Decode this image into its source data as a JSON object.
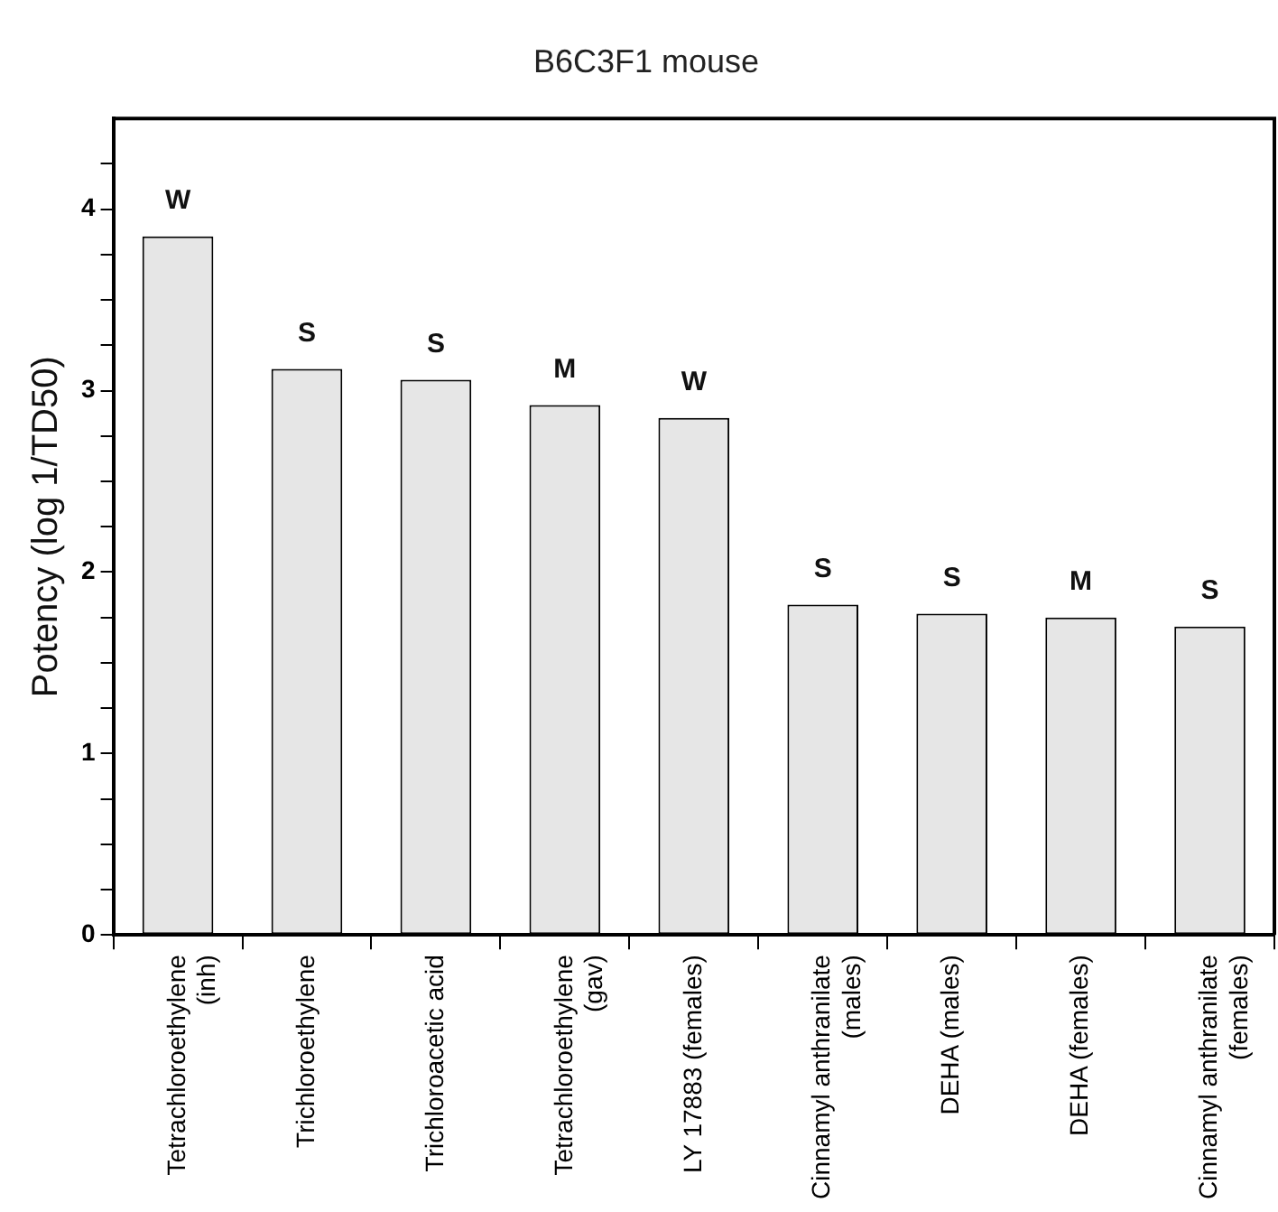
{
  "chart_data": {
    "type": "bar",
    "title": "B6C3F1 mouse",
    "ylabel": "Potency (log 1/TD50)",
    "categories": [
      "Tetrachloroethylene\n(inh)",
      "Trichloroethylene",
      "Trichloroacetic acid",
      "Tetrachloroethylene\n(gav)",
      "LY 17883 (females)",
      "Cinnamyl anthranilate\n(males)",
      "DEHA (males)",
      "DEHA (females)",
      "Cinnamyl anthranilate\n(females)"
    ],
    "values": [
      3.85,
      3.12,
      3.06,
      2.92,
      2.85,
      1.82,
      1.77,
      1.75,
      1.7
    ],
    "value_labels": [
      "W",
      "S",
      "S",
      "M",
      "W",
      "S",
      "S",
      "M",
      "S"
    ],
    "color": "#e6e6e6",
    "ylim": [
      0,
      4.5
    ],
    "yticks": [
      0,
      {
        "value": 0.25,
        "label": null
      },
      {
        "value": 0.5,
        "label": null
      },
      {
        "value": 0.75,
        "label": null
      },
      1,
      {
        "value": 1.25,
        "label": null
      },
      {
        "value": 1.5,
        "label": null
      },
      {
        "value": 1.75,
        "label": null
      },
      2,
      {
        "value": 2.25,
        "label": null
      },
      {
        "value": 2.5,
        "label": null
      },
      {
        "value": 2.75,
        "label": null
      },
      3,
      {
        "value": 3.25,
        "label": null
      },
      {
        "value": 3.5,
        "label": null
      },
      {
        "value": 3.75,
        "label": null
      },
      4,
      {
        "value": 4.25,
        "label": null
      }
    ],
    "grid": false,
    "legend": false
  }
}
